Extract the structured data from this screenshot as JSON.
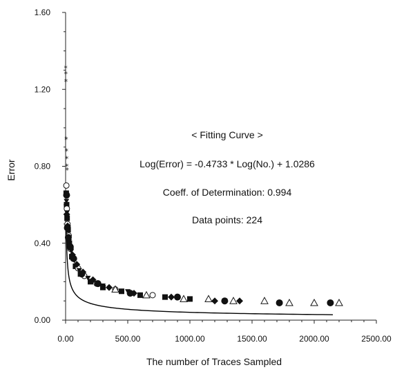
{
  "chart_data": {
    "type": "scatter",
    "xlabel": "The number of  Traces Sampled",
    "ylabel": "Error",
    "xlim": [
      0,
      2500
    ],
    "ylim": [
      0,
      1.6
    ],
    "x_ticks": [
      0,
      500,
      1000,
      1500,
      2000,
      2500
    ],
    "x_tick_labels": [
      "0.00",
      "500.00",
      "1000.00",
      "1500.00",
      "2000.00",
      "2500.00"
    ],
    "y_ticks": [
      0,
      0.4,
      0.8,
      1.2,
      1.6
    ],
    "y_tick_labels": [
      "0.00",
      "0.40",
      "0.80",
      "1.20",
      "1.60"
    ],
    "grid": false,
    "annotations": [
      "< Fitting Curve >",
      "Log(Error) = -0.4733 * Log(No.) + 1.0286",
      "Coeff. of Determination: 0.994",
      "Data points: 224"
    ],
    "fit": {
      "slope": -0.4733,
      "intercept": 1.0286,
      "x_range": [
        5,
        2150
      ]
    },
    "series": [
      {
        "marker": "star",
        "x": [
          1,
          2,
          3,
          5,
          7,
          9,
          10,
          12
        ],
        "y": [
          1.31,
          1.28,
          1.24,
          0.94,
          0.88,
          0.84,
          0.8,
          0.78
        ]
      },
      {
        "marker": "square",
        "x": [
          5,
          8,
          12,
          20,
          30,
          50,
          80,
          120,
          200,
          300,
          450,
          600,
          800,
          1000
        ],
        "y": [
          0.66,
          0.6,
          0.53,
          0.47,
          0.4,
          0.33,
          0.28,
          0.24,
          0.2,
          0.17,
          0.15,
          0.13,
          0.12,
          0.11
        ]
      },
      {
        "marker": "circle-open",
        "x": [
          6,
          10,
          15,
          25,
          40,
          60,
          100,
          150,
          250,
          400,
          700
        ],
        "y": [
          0.7,
          0.58,
          0.5,
          0.44,
          0.37,
          0.32,
          0.27,
          0.23,
          0.19,
          0.16,
          0.13
        ]
      },
      {
        "marker": "triangle-down",
        "x": [
          7,
          11,
          18,
          28,
          45,
          70,
          110,
          180,
          300,
          500
        ],
        "y": [
          0.62,
          0.56,
          0.48,
          0.41,
          0.36,
          0.31,
          0.26,
          0.22,
          0.18,
          0.15
        ]
      },
      {
        "marker": "diamond",
        "x": [
          9,
          16,
          35,
          55,
          90,
          140,
          220,
          350,
          550,
          850,
          1200,
          1400
        ],
        "y": [
          0.55,
          0.49,
          0.39,
          0.34,
          0.29,
          0.25,
          0.21,
          0.17,
          0.14,
          0.12,
          0.1,
          0.1
        ]
      },
      {
        "marker": "circle-filled",
        "x": [
          8,
          14,
          22,
          38,
          65,
          130,
          260,
          520,
          900,
          1280,
          1720,
          2130
        ],
        "y": [
          0.65,
          0.48,
          0.43,
          0.38,
          0.32,
          0.24,
          0.19,
          0.14,
          0.12,
          0.1,
          0.09,
          0.09
        ]
      },
      {
        "marker": "triangle-open",
        "x": [
          400,
          650,
          950,
          1150,
          1350,
          1600,
          1800,
          2000,
          2200
        ],
        "y": [
          0.16,
          0.13,
          0.11,
          0.11,
          0.1,
          0.1,
          0.09,
          0.09,
          0.09
        ]
      }
    ]
  }
}
